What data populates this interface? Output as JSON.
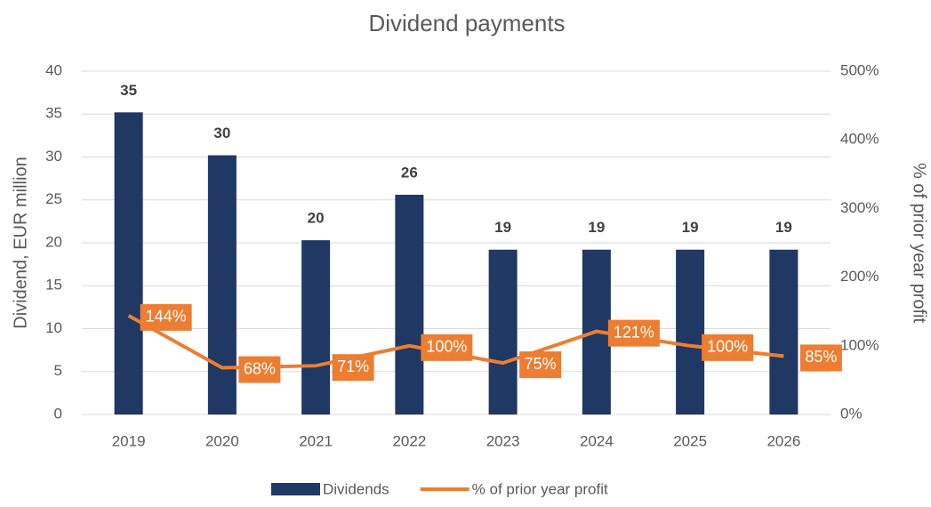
{
  "chart_data": {
    "type": "bar",
    "title": "Dividend payments",
    "categories": [
      "2019",
      "2020",
      "2021",
      "2022",
      "2023",
      "2024",
      "2025",
      "2026"
    ],
    "ylabel": "Dividend, EUR million",
    "y2label": "% of prior year profit",
    "ylim": [
      0,
      40
    ],
    "yticks": [
      0,
      5,
      10,
      15,
      20,
      25,
      30,
      35,
      40
    ],
    "y2lim": [
      0,
      500
    ],
    "y2ticks": [
      {
        "value": 0,
        "label": "0%"
      },
      {
        "value": 100,
        "label": "100%"
      },
      {
        "value": 200,
        "label": "200%"
      },
      {
        "value": 300,
        "label": "300%"
      },
      {
        "value": 400,
        "label": "400%"
      },
      {
        "value": 500,
        "label": "500%"
      }
    ],
    "grid": true,
    "legend": "bottom",
    "series": [
      {
        "name": "Dividends",
        "type": "bar",
        "color": "#1f3864",
        "values": [
          35.2,
          30.2,
          20.3,
          25.6,
          19.2,
          19.2,
          19.2,
          19.2
        ],
        "value_labels": [
          "35",
          "30",
          "20",
          "26",
          "19",
          "19",
          "19",
          "19"
        ]
      },
      {
        "name": "% of prior year profit",
        "type": "line",
        "axis": "y2",
        "color": "#ed7d31",
        "values": [
          144,
          68,
          71,
          100,
          75,
          121,
          100,
          85
        ],
        "value_labels": [
          "144%",
          "68%",
          "71%",
          "100%",
          "75%",
          "121%",
          "100%",
          "85%"
        ]
      }
    ]
  }
}
